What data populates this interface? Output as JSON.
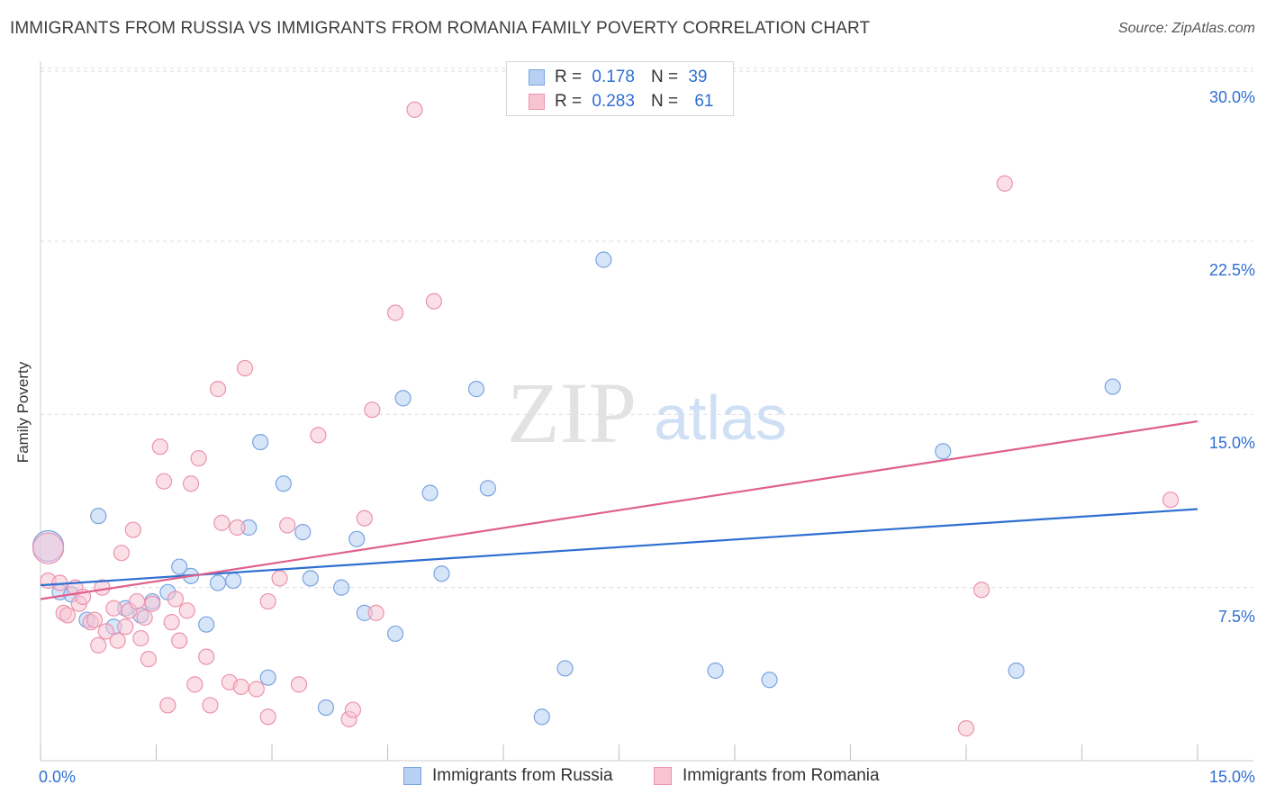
{
  "header": {
    "title": "IMMIGRANTS FROM RUSSIA VS IMMIGRANTS FROM ROMANIA FAMILY POVERTY CORRELATION CHART",
    "source": "Source: ZipAtlas.com"
  },
  "watermark": {
    "zip": "ZIP",
    "atlas": "atlas"
  },
  "legend": {
    "russia": {
      "r_label": "R =",
      "r_value": "0.178",
      "n_label": "N =",
      "n_value": "39"
    },
    "romania": {
      "r_label": "R =",
      "r_value": "0.283",
      "n_label": "N =",
      "n_value": "61"
    }
  },
  "colors": {
    "russia_fill": "#b7d0f3",
    "russia_stroke": "#7aa4e0",
    "russia_line": "#2f6fd1",
    "romania_fill": "#f8c4d3",
    "romania_stroke": "#eb93ad",
    "romania_line": "#e0608c",
    "accent_text": "#2f6fd1"
  },
  "chart_data": {
    "type": "scatter",
    "title": "IMMIGRANTS FROM RUSSIA VS IMMIGRANTS FROM ROMANIA FAMILY POVERTY CORRELATION CHART",
    "xlabel": "",
    "ylabel": "Family Poverty",
    "xlim": [
      0,
      15
    ],
    "ylim": [
      0,
      31
    ],
    "x_tick_labels": [
      "0.0%",
      "15.0%"
    ],
    "y_ticks": [
      {
        "value": 7.5,
        "label": "7.5%"
      },
      {
        "value": 15.0,
        "label": "15.0%"
      },
      {
        "value": 22.5,
        "label": "22.5%"
      },
      {
        "value": 30.0,
        "label": "30.0%"
      }
    ],
    "grid": true,
    "legend_position": "top-center",
    "series": [
      {
        "name": "Immigrants from Russia",
        "color": "russia",
        "r": 0.178,
        "n": 39,
        "trend": {
          "x": [
            0,
            15
          ],
          "y": [
            7.6,
            10.9
          ]
        },
        "points": [
          {
            "x": 0.1,
            "y": 9.3,
            "size": "large"
          },
          {
            "x": 0.25,
            "y": 7.3
          },
          {
            "x": 0.4,
            "y": 7.2
          },
          {
            "x": 0.6,
            "y": 6.1
          },
          {
            "x": 0.75,
            "y": 10.6
          },
          {
            "x": 0.95,
            "y": 5.8
          },
          {
            "x": 1.1,
            "y": 6.6
          },
          {
            "x": 1.3,
            "y": 6.3
          },
          {
            "x": 1.45,
            "y": 6.9
          },
          {
            "x": 1.65,
            "y": 7.3
          },
          {
            "x": 1.8,
            "y": 8.4
          },
          {
            "x": 1.95,
            "y": 8.0
          },
          {
            "x": 2.15,
            "y": 5.9
          },
          {
            "x": 2.3,
            "y": 7.7
          },
          {
            "x": 2.5,
            "y": 7.8
          },
          {
            "x": 2.7,
            "y": 10.1
          },
          {
            "x": 2.85,
            "y": 13.8
          },
          {
            "x": 2.95,
            "y": 3.6
          },
          {
            "x": 3.15,
            "y": 12.0
          },
          {
            "x": 3.4,
            "y": 9.9
          },
          {
            "x": 3.5,
            "y": 7.9
          },
          {
            "x": 3.7,
            "y": 2.3
          },
          {
            "x": 3.9,
            "y": 7.5
          },
          {
            "x": 4.1,
            "y": 9.6
          },
          {
            "x": 4.2,
            "y": 6.4
          },
          {
            "x": 4.6,
            "y": 5.5
          },
          {
            "x": 4.7,
            "y": 15.7
          },
          {
            "x": 5.05,
            "y": 11.6
          },
          {
            "x": 5.2,
            "y": 8.1
          },
          {
            "x": 5.65,
            "y": 16.1
          },
          {
            "x": 5.8,
            "y": 11.8
          },
          {
            "x": 6.5,
            "y": 1.9
          },
          {
            "x": 6.8,
            "y": 4.0
          },
          {
            "x": 7.3,
            "y": 21.7
          },
          {
            "x": 8.75,
            "y": 3.9
          },
          {
            "x": 9.45,
            "y": 3.5
          },
          {
            "x": 11.7,
            "y": 13.4
          },
          {
            "x": 12.65,
            "y": 3.9
          },
          {
            "x": 13.9,
            "y": 16.2
          }
        ]
      },
      {
        "name": "Immigrants from Romania",
        "color": "romania",
        "r": 0.283,
        "n": 61,
        "trend": {
          "x": [
            0,
            15
          ],
          "y": [
            7.0,
            14.7
          ]
        },
        "points": [
          {
            "x": 0.1,
            "y": 9.2,
            "size": "large"
          },
          {
            "x": 0.1,
            "y": 7.8
          },
          {
            "x": 0.25,
            "y": 7.7
          },
          {
            "x": 0.3,
            "y": 6.4
          },
          {
            "x": 0.35,
            "y": 6.3
          },
          {
            "x": 0.45,
            "y": 7.5
          },
          {
            "x": 0.5,
            "y": 6.8
          },
          {
            "x": 0.55,
            "y": 7.1
          },
          {
            "x": 0.65,
            "y": 6.0
          },
          {
            "x": 0.7,
            "y": 6.1
          },
          {
            "x": 0.75,
            "y": 5.0
          },
          {
            "x": 0.8,
            "y": 7.5
          },
          {
            "x": 0.85,
            "y": 5.6
          },
          {
            "x": 0.95,
            "y": 6.6
          },
          {
            "x": 1.0,
            "y": 5.2
          },
          {
            "x": 1.05,
            "y": 9.0
          },
          {
            "x": 1.1,
            "y": 5.8
          },
          {
            "x": 1.15,
            "y": 6.5
          },
          {
            "x": 1.2,
            "y": 10.0
          },
          {
            "x": 1.25,
            "y": 6.9
          },
          {
            "x": 1.3,
            "y": 5.3
          },
          {
            "x": 1.35,
            "y": 6.2
          },
          {
            "x": 1.4,
            "y": 4.4
          },
          {
            "x": 1.45,
            "y": 6.8
          },
          {
            "x": 1.55,
            "y": 13.6
          },
          {
            "x": 1.6,
            "y": 12.1
          },
          {
            "x": 1.65,
            "y": 2.4
          },
          {
            "x": 1.7,
            "y": 6.0
          },
          {
            "x": 1.75,
            "y": 7.0
          },
          {
            "x": 1.8,
            "y": 5.2
          },
          {
            "x": 1.9,
            "y": 6.5
          },
          {
            "x": 1.95,
            "y": 12.0
          },
          {
            "x": 2.0,
            "y": 3.3
          },
          {
            "x": 2.05,
            "y": 13.1
          },
          {
            "x": 2.15,
            "y": 4.5
          },
          {
            "x": 2.2,
            "y": 2.4
          },
          {
            "x": 2.3,
            "y": 16.1
          },
          {
            "x": 2.35,
            "y": 10.3
          },
          {
            "x": 2.45,
            "y": 3.4
          },
          {
            "x": 2.55,
            "y": 10.1
          },
          {
            "x": 2.6,
            "y": 3.2
          },
          {
            "x": 2.65,
            "y": 17.0
          },
          {
            "x": 2.8,
            "y": 3.1
          },
          {
            "x": 2.95,
            "y": 1.9
          },
          {
            "x": 2.95,
            "y": 6.9
          },
          {
            "x": 3.1,
            "y": 7.9
          },
          {
            "x": 3.2,
            "y": 10.2
          },
          {
            "x": 3.35,
            "y": 3.3
          },
          {
            "x": 3.6,
            "y": 14.1
          },
          {
            "x": 4.0,
            "y": 1.8
          },
          {
            "x": 4.05,
            "y": 2.2
          },
          {
            "x": 4.2,
            "y": 10.5
          },
          {
            "x": 4.3,
            "y": 15.2
          },
          {
            "x": 4.35,
            "y": 6.4
          },
          {
            "x": 4.6,
            "y": 19.4
          },
          {
            "x": 4.85,
            "y": 28.2
          },
          {
            "x": 5.1,
            "y": 19.9
          },
          {
            "x": 12.0,
            "y": 1.4
          },
          {
            "x": 12.2,
            "y": 7.4
          },
          {
            "x": 12.5,
            "y": 25.0
          },
          {
            "x": 14.65,
            "y": 11.3
          }
        ]
      }
    ]
  },
  "bottom_legend": {
    "russia_label": "Immigrants from Russia",
    "romania_label": "Immigrants from Romania"
  }
}
